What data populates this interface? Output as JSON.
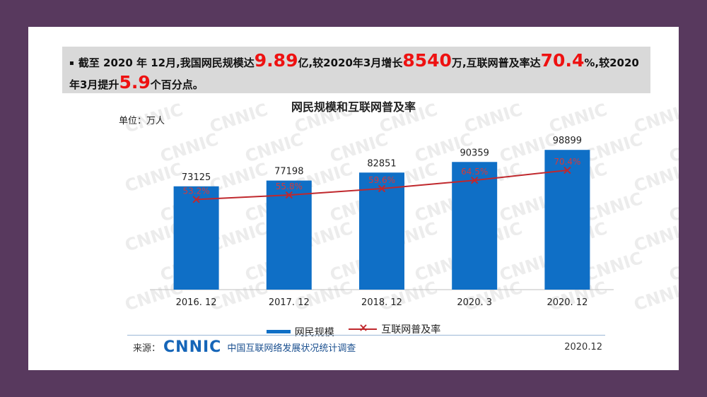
{
  "summary": {
    "bullet": "▪",
    "t1": "截至 2020 年 12月,我国网民规模达",
    "v1": "9.89",
    "t2": "亿,较2020年3月增长",
    "v2": "8540",
    "t3": "万,互联网普及率达",
    "v3": "70.4",
    "t4": "%,较2020年3月提升",
    "v4": "5.9",
    "t5": "个百分点。"
  },
  "chart_data": {
    "type": "bar",
    "title": "网民规模和互联网普及率",
    "unit_label": "单位：万人",
    "categories": [
      "2016. 12",
      "2017. 12",
      "2018. 12",
      "2020. 3",
      "2020. 12"
    ],
    "series": [
      {
        "name": "网民规模",
        "type": "bar",
        "values": [
          73125,
          77198,
          82851,
          90359,
          98899
        ],
        "color": "#0f6fc6"
      },
      {
        "name": "互联网普及率",
        "type": "line",
        "marker": "x",
        "values": [
          53.2,
          55.8,
          59.6,
          64.5,
          70.4
        ],
        "labels": [
          "53.2%",
          "55.8%",
          "59.6%",
          "64.5%",
          "70.4%"
        ],
        "color": "#c0282d"
      }
    ],
    "bar_ylim": [
      0,
      120000
    ],
    "line_ylim": [
      0,
      100
    ],
    "legend_position": "bottom",
    "grid": false
  },
  "watermark": "CNNIC",
  "footer": {
    "source_label": "来源：",
    "logo": "CNNIC",
    "org": "中国互联网络发展状况统计调查",
    "date": "2020.12"
  }
}
